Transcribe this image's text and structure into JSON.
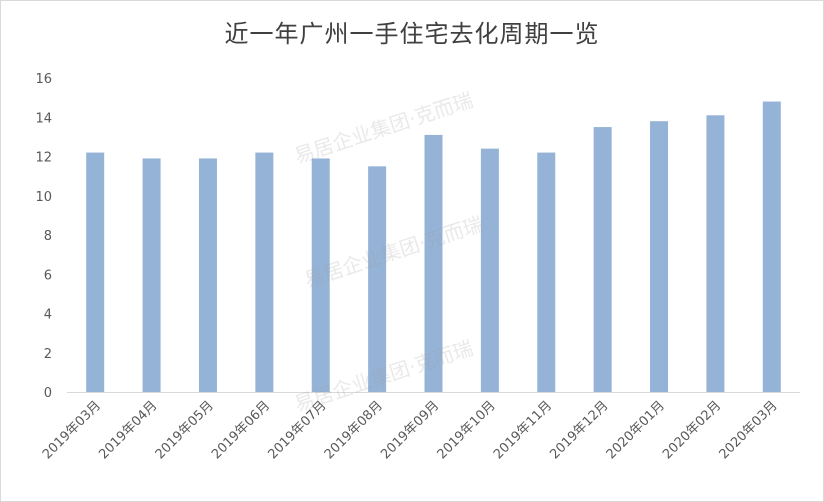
{
  "chart_data": {
    "type": "bar",
    "title": "近一年广州一手住宅去化周期一览",
    "categories": [
      "2019年03月",
      "2019年04月",
      "2019年05月",
      "2019年06月",
      "2019年07月",
      "2019年08月",
      "2019年09月",
      "2019年10月",
      "2019年11月",
      "2019年12月",
      "2020年01月",
      "2020年02月",
      "2020年03月"
    ],
    "values": [
      12.2,
      11.9,
      11.9,
      12.2,
      11.9,
      11.5,
      13.1,
      12.4,
      12.2,
      13.5,
      13.8,
      14.1,
      14.8
    ],
    "yticks": [
      "0",
      "2",
      "4",
      "6",
      "8",
      "10",
      "12",
      "14",
      "16"
    ],
    "ylim": [
      0,
      16
    ],
    "xlabel": "",
    "ylabel": "",
    "grid": false,
    "bar_color": "#95b3d7",
    "axis_color": "#d9d9d9"
  },
  "watermark": {
    "text": "易居企业集团·克而瑞"
  }
}
